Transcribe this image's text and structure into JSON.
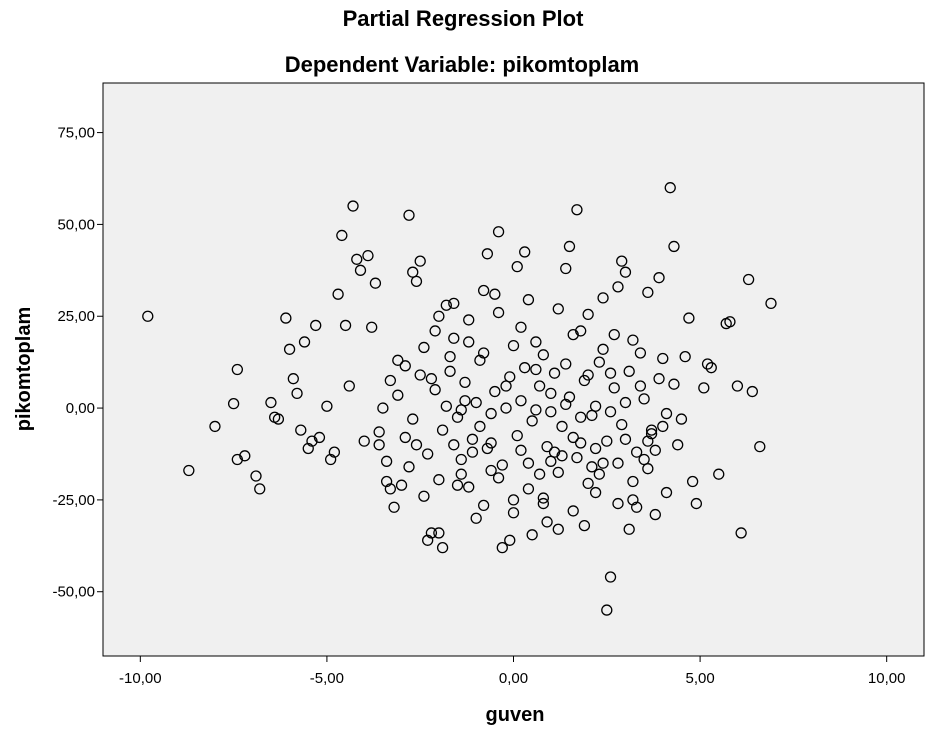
{
  "chart_data": {
    "type": "scatter",
    "title": "Partial Regression Plot",
    "subtitle": "Dependent Variable: pikomtoplam",
    "xlabel": "guven",
    "ylabel": "pikomtoplam",
    "xlim": [
      -11.0,
      11.0
    ],
    "ylim": [
      -67.5,
      88.5
    ],
    "xticks": [
      -10,
      -5,
      0,
      5,
      10
    ],
    "xtick_labels": [
      "-10,00",
      "-5,00",
      "0,00",
      "5,00",
      "10,00"
    ],
    "yticks": [
      75,
      50,
      25,
      0,
      -25,
      -50
    ],
    "ytick_labels": [
      "75,00",
      "50,00",
      "25,00",
      "0,00",
      "-25,00",
      "-50,00"
    ],
    "grid": false,
    "legend": false,
    "plot_background": "#f0f0f0",
    "marker": "open-circle",
    "points": [
      [
        -9.8,
        25.0
      ],
      [
        -8.7,
        -17.0
      ],
      [
        -8.0,
        -5.0
      ],
      [
        -7.4,
        10.5
      ],
      [
        -7.5,
        1.2
      ],
      [
        -7.4,
        -14.0
      ],
      [
        -7.2,
        -13.0
      ],
      [
        -6.9,
        -18.5
      ],
      [
        -6.8,
        -22.0
      ],
      [
        -6.5,
        1.5
      ],
      [
        -6.4,
        -2.5
      ],
      [
        -6.3,
        -3.0
      ],
      [
        -6.1,
        24.5
      ],
      [
        -6.0,
        16.0
      ],
      [
        -5.9,
        8.0
      ],
      [
        -5.8,
        4.0
      ],
      [
        -5.7,
        -6.0
      ],
      [
        -5.6,
        18.0
      ],
      [
        -5.5,
        -11.0
      ],
      [
        -5.4,
        -9.0
      ],
      [
        -5.3,
        22.5
      ],
      [
        -5.2,
        -8.0
      ],
      [
        -5.0,
        0.5
      ],
      [
        -4.9,
        -14.0
      ],
      [
        -4.8,
        -12.0
      ],
      [
        -4.7,
        31.0
      ],
      [
        -4.6,
        47.0
      ],
      [
        -4.5,
        22.5
      ],
      [
        -4.4,
        6.0
      ],
      [
        -4.3,
        55.0
      ],
      [
        -4.2,
        40.5
      ],
      [
        -4.1,
        37.5
      ],
      [
        -4.0,
        -9.0
      ],
      [
        -3.9,
        41.5
      ],
      [
        -3.8,
        22.0
      ],
      [
        -3.7,
        34.0
      ],
      [
        -3.6,
        -10.0
      ],
      [
        -3.5,
        0.0
      ],
      [
        -3.4,
        -20.0
      ],
      [
        -3.3,
        -22.0
      ],
      [
        -3.2,
        -27.0
      ],
      [
        -3.1,
        13.0
      ],
      [
        -3.0,
        -21.0
      ],
      [
        -2.9,
        -8.0
      ],
      [
        -2.8,
        52.5
      ],
      [
        -2.7,
        37.0
      ],
      [
        -2.6,
        34.5
      ],
      [
        -2.5,
        40.0
      ],
      [
        -2.4,
        -24.0
      ],
      [
        -2.3,
        -36.0
      ],
      [
        -2.2,
        -34.0
      ],
      [
        -2.1,
        21.0
      ],
      [
        -2.0,
        -34.0
      ],
      [
        -1.9,
        -38.0
      ],
      [
        -1.8,
        28.0
      ],
      [
        -1.7,
        14.0
      ],
      [
        -1.6,
        -10.0
      ],
      [
        -1.5,
        -21.0
      ],
      [
        -1.4,
        -18.0
      ],
      [
        -1.3,
        2.0
      ],
      [
        -1.2,
        18.0
      ],
      [
        -1.1,
        -12.0
      ],
      [
        -1.0,
        -30.0
      ],
      [
        -0.9,
        -5.0
      ],
      [
        -0.8,
        32.0
      ],
      [
        -0.7,
        42.0
      ],
      [
        -0.6,
        -17.0
      ],
      [
        -0.5,
        31.0
      ],
      [
        -0.4,
        48.0
      ],
      [
        -0.3,
        -38.0
      ],
      [
        -0.2,
        6.0
      ],
      [
        -0.1,
        -36.0
      ],
      [
        0.0,
        -25.0
      ],
      [
        0.1,
        38.5
      ],
      [
        0.2,
        22.0
      ],
      [
        0.3,
        42.5
      ],
      [
        0.4,
        -15.0
      ],
      [
        0.5,
        -34.5
      ],
      [
        0.6,
        18.0
      ],
      [
        0.7,
        -18.0
      ],
      [
        0.8,
        -26.0
      ],
      [
        0.9,
        -31.0
      ],
      [
        1.0,
        4.0
      ],
      [
        1.1,
        -12.0
      ],
      [
        1.2,
        -33.0
      ],
      [
        1.3,
        -13.0
      ],
      [
        1.4,
        38.0
      ],
      [
        1.5,
        44.0
      ],
      [
        1.6,
        -8.0
      ],
      [
        1.7,
        54.0
      ],
      [
        1.8,
        21.0
      ],
      [
        1.9,
        -32.0
      ],
      [
        2.0,
        9.0
      ],
      [
        2.1,
        -16.0
      ],
      [
        2.2,
        -23.0
      ],
      [
        2.3,
        -18.0
      ],
      [
        2.4,
        -15.0
      ],
      [
        2.5,
        -55.0
      ],
      [
        2.6,
        -46.0
      ],
      [
        2.7,
        20.0
      ],
      [
        2.8,
        -26.0
      ],
      [
        2.9,
        40.0
      ],
      [
        3.0,
        37.0
      ],
      [
        3.1,
        -33.0
      ],
      [
        3.2,
        -20.0
      ],
      [
        3.3,
        -27.0
      ],
      [
        3.4,
        15.0
      ],
      [
        3.5,
        -14.0
      ],
      [
        3.6,
        -9.0
      ],
      [
        3.7,
        -6.0
      ],
      [
        3.8,
        -29.0
      ],
      [
        3.9,
        35.5
      ],
      [
        4.0,
        -5.0
      ],
      [
        4.1,
        -23.0
      ],
      [
        4.2,
        60.0
      ],
      [
        4.3,
        44.0
      ],
      [
        4.4,
        -10.0
      ],
      [
        4.5,
        -3.0
      ],
      [
        4.6,
        14.0
      ],
      [
        4.7,
        24.5
      ],
      [
        4.8,
        -20.0
      ],
      [
        4.9,
        -26.0
      ],
      [
        5.1,
        5.5
      ],
      [
        5.2,
        12.0
      ],
      [
        5.3,
        11.0
      ],
      [
        5.5,
        -18.0
      ],
      [
        5.7,
        23.0
      ],
      [
        5.8,
        23.5
      ],
      [
        6.0,
        6.0
      ],
      [
        6.1,
        -34.0
      ],
      [
        6.3,
        35.0
      ],
      [
        6.4,
        4.5
      ],
      [
        6.6,
        -10.5
      ],
      [
        6.9,
        28.5
      ],
      [
        -3.6,
        -6.5
      ],
      [
        -3.3,
        7.5
      ],
      [
        -3.1,
        3.5
      ],
      [
        -2.9,
        11.5
      ],
      [
        -2.7,
        -3.0
      ],
      [
        -2.5,
        9.0
      ],
      [
        -2.3,
        -12.5
      ],
      [
        -2.1,
        5.0
      ],
      [
        -1.9,
        -6.0
      ],
      [
        -1.7,
        10.0
      ],
      [
        -1.5,
        -2.5
      ],
      [
        -1.3,
        7.0
      ],
      [
        -1.1,
        -8.5
      ],
      [
        -0.9,
        13.0
      ],
      [
        -0.7,
        -11.0
      ],
      [
        -0.5,
        4.5
      ],
      [
        -0.3,
        -15.5
      ],
      [
        -0.1,
        8.5
      ],
      [
        0.1,
        -7.5
      ],
      [
        0.3,
        11.0
      ],
      [
        0.5,
        -3.5
      ],
      [
        0.7,
        6.0
      ],
      [
        0.9,
        -10.5
      ],
      [
        1.1,
        9.5
      ],
      [
        1.3,
        -5.0
      ],
      [
        1.5,
        3.0
      ],
      [
        1.7,
        -13.5
      ],
      [
        1.9,
        7.5
      ],
      [
        2.1,
        -2.0
      ],
      [
        2.3,
        12.5
      ],
      [
        2.5,
        -9.0
      ],
      [
        2.7,
        5.5
      ],
      [
        2.9,
        -4.5
      ],
      [
        3.1,
        10.0
      ],
      [
        3.3,
        -12.0
      ],
      [
        3.5,
        2.5
      ],
      [
        3.7,
        -7.0
      ],
      [
        3.9,
        8.0
      ],
      [
        4.1,
        -1.5
      ],
      [
        4.3,
        6.5
      ],
      [
        -2.8,
        -16.0
      ],
      [
        -2.4,
        16.5
      ],
      [
        -2.0,
        -19.5
      ],
      [
        -1.6,
        19.0
      ],
      [
        -1.2,
        -21.5
      ],
      [
        -0.8,
        15.0
      ],
      [
        -0.4,
        -19.0
      ],
      [
        0.0,
        17.0
      ],
      [
        0.4,
        -22.0
      ],
      [
        0.8,
        14.5
      ],
      [
        1.2,
        -17.5
      ],
      [
        1.6,
        20.0
      ],
      [
        2.0,
        -20.5
      ],
      [
        2.4,
        16.0
      ],
      [
        2.8,
        -15.0
      ],
      [
        3.2,
        18.5
      ],
      [
        3.6,
        -16.5
      ],
      [
        4.0,
        13.5
      ],
      [
        -1.8,
        0.5
      ],
      [
        -1.4,
        -0.5
      ],
      [
        -1.0,
        1.5
      ],
      [
        -0.6,
        -1.5
      ],
      [
        -0.2,
        0.0
      ],
      [
        0.2,
        2.0
      ],
      [
        0.6,
        -0.5
      ],
      [
        1.0,
        -1.0
      ],
      [
        1.4,
        1.0
      ],
      [
        1.8,
        -2.5
      ],
      [
        2.2,
        0.5
      ],
      [
        2.6,
        -1.0
      ],
      [
        3.0,
        1.5
      ],
      [
        -3.4,
        -14.5
      ],
      [
        -2.6,
        -10.0
      ],
      [
        -2.2,
        8.0
      ],
      [
        -1.4,
        -14.0
      ],
      [
        -0.6,
        -9.5
      ],
      [
        0.2,
        -11.5
      ],
      [
        0.6,
        10.5
      ],
      [
        1.0,
        -14.5
      ],
      [
        1.4,
        12.0
      ],
      [
        1.8,
        -9.5
      ],
      [
        2.2,
        -11.0
      ],
      [
        2.6,
        9.5
      ],
      [
        3.0,
        -8.5
      ],
      [
        3.4,
        6.0
      ],
      [
        3.8,
        -11.5
      ],
      [
        -2.0,
        25.0
      ],
      [
        -1.6,
        28.5
      ],
      [
        -1.2,
        24.0
      ],
      [
        -0.8,
        -26.5
      ],
      [
        -0.4,
        26.0
      ],
      [
        0.0,
        -28.5
      ],
      [
        0.4,
        29.5
      ],
      [
        0.8,
        -24.5
      ],
      [
        1.2,
        27.0
      ],
      [
        1.6,
        -28.0
      ],
      [
        2.0,
        25.5
      ],
      [
        2.4,
        30.0
      ],
      [
        2.8,
        33.0
      ],
      [
        3.2,
        -25.0
      ],
      [
        3.6,
        31.5
      ]
    ]
  }
}
